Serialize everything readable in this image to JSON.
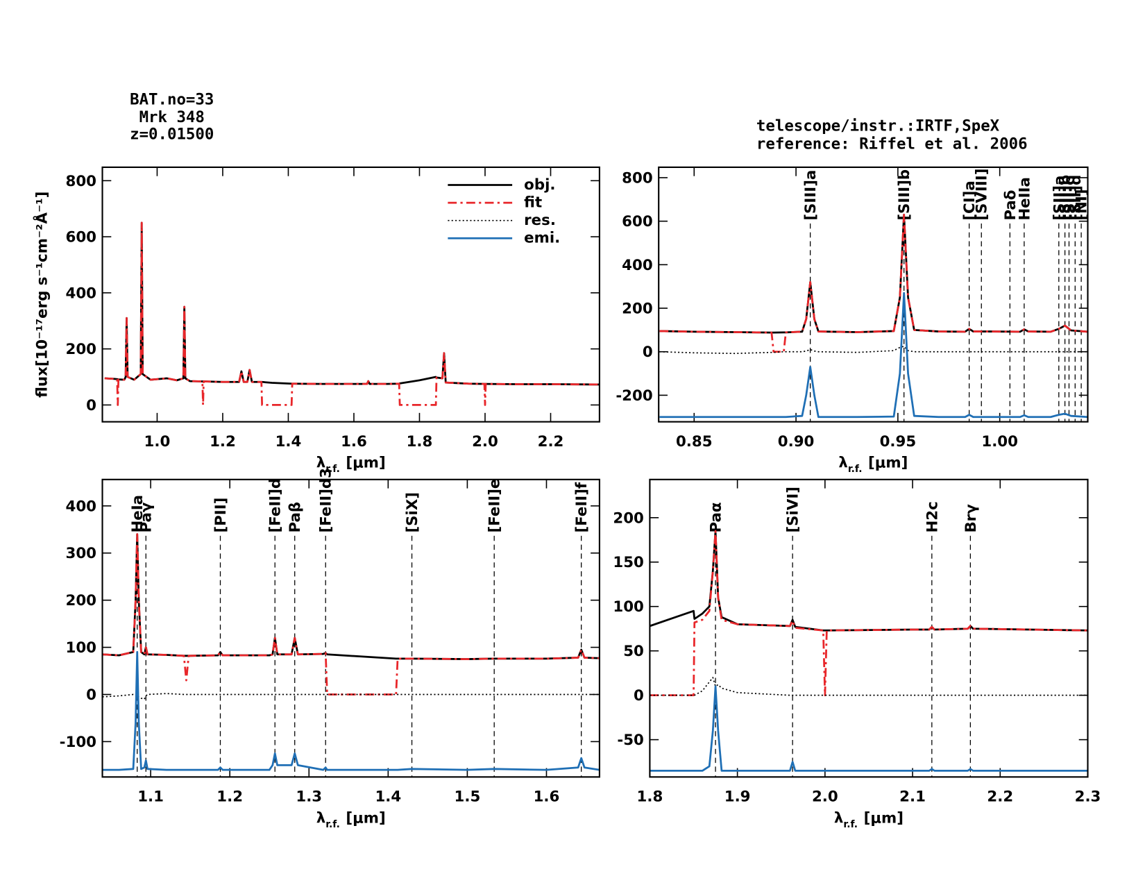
{
  "header": {
    "object": [
      "BAT.no=33",
      "Mrk 348",
      "z=0.01500"
    ],
    "info": [
      "telescope/instr.:IRTF,SpeX",
      "reference: Riffel et al. 2006"
    ]
  },
  "chart_data": [
    {
      "type": "line",
      "ylabel": "flux[10⁻¹⁷erg s⁻¹cm⁻²Å⁻¹]",
      "xlabel": {
        "symbol": "λ",
        "subscript": "r.f.",
        "unit": "[μm]"
      },
      "xlim": [
        0.833,
        2.349
      ],
      "ylim": [
        -60,
        848
      ],
      "xticks": [
        {
          "value": 1,
          "label": "1.0"
        },
        1.2,
        1.4,
        1.6,
        1.8,
        {
          "value": 2,
          "label": "2.0"
        },
        2.2
      ],
      "yticks": [
        0,
        200,
        400,
        600,
        800
      ],
      "legend": [
        {
          "name": "obj.",
          "color": "#000000",
          "dash": "solid"
        },
        {
          "name": "fit",
          "color": "#e8262a",
          "dash": "dashdot"
        },
        {
          "name": "res.",
          "color": "#000000",
          "dash": "dotted"
        },
        {
          "name": "emi.",
          "color": "#1f6fb5",
          "dash": "solid"
        }
      ],
      "x": [
        0.84,
        0.87,
        0.878,
        0.88,
        0.882,
        0.9,
        0.904,
        0.907,
        0.91,
        0.93,
        0.95,
        0.953,
        0.956,
        0.98,
        1.0,
        1.03,
        1.06,
        1.08,
        1.083,
        1.086,
        1.1,
        1.138,
        1.14,
        1.142,
        1.2,
        1.25,
        1.257,
        1.264,
        1.275,
        1.282,
        1.289,
        1.318,
        1.32,
        1.35,
        1.41,
        1.412,
        1.5,
        1.6,
        1.64,
        1.644,
        1.648,
        1.7,
        1.738,
        1.74,
        1.8,
        1.85,
        1.852,
        1.87,
        1.875,
        1.88,
        1.95,
        1.998,
        2.0,
        2.002,
        2.1,
        2.2,
        2.35
      ],
      "series": [
        {
          "color": "#000000",
          "dash": "solid",
          "values": [
            95,
            93,
            92,
            92,
            91,
            90,
            100,
            310,
            100,
            90,
            110,
            650,
            110,
            90,
            92,
            95,
            88,
            95,
            350,
            95,
            85,
            84,
            84,
            84,
            82,
            82,
            120,
            82,
            82,
            125,
            82,
            82,
            82,
            79,
            76,
            76,
            75,
            75,
            75,
            85,
            75,
            75,
            76,
            77,
            88,
            100,
            98,
            95,
            185,
            80,
            76,
            75,
            75,
            75,
            74,
            74,
            73
          ]
        },
        {
          "color": "#e8262a",
          "dash": "dashdot",
          "values": [
            95,
            93,
            92,
            0,
            91,
            90,
            100,
            310,
            100,
            90,
            110,
            650,
            110,
            90,
            92,
            95,
            88,
            95,
            350,
            95,
            85,
            84,
            0,
            84,
            82,
            82,
            120,
            82,
            82,
            125,
            82,
            82,
            0,
            0,
            0,
            76,
            75,
            75,
            75,
            85,
            75,
            75,
            76,
            0,
            0,
            0,
            98,
            95,
            185,
            80,
            76,
            75,
            0,
            75,
            74,
            74,
            73
          ]
        }
      ]
    },
    {
      "type": "line",
      "xlabel": {
        "symbol": "λ",
        "subscript": "r.f.",
        "unit": "[μm]"
      },
      "xlim": [
        0.8326,
        1.0432
      ],
      "ylim": [
        -322,
        848
      ],
      "xticks": [
        0.85,
        {
          "value": 0.9,
          "label": "0.90"
        },
        0.95,
        {
          "value": 1,
          "label": "1.00"
        }
      ],
      "yticks": [
        -200,
        0,
        200,
        400,
        600,
        800
      ],
      "lines": [
        {
          "label": "[SIII]a",
          "x": 0.907
        },
        {
          "label": "[SIII]b",
          "x": 0.953
        },
        {
          "label": "[CI]a",
          "x": 0.985
        },
        {
          "label": "[SVIII]",
          "x": 0.991
        },
        {
          "label": "Paδ",
          "x": 1.005
        },
        {
          "label": "HeIIa",
          "x": 1.012
        },
        {
          "label": "[SII]a",
          "x": 1.029
        },
        {
          "label": "[SII]b",
          "x": 1.032
        },
        {
          "label": "[SII]c",
          "x": 1.034
        },
        {
          "label": "[SII]d",
          "x": 1.037
        },
        {
          "label": "[NI]",
          "x": 1.04
        }
      ],
      "x": [
        0.833,
        0.85,
        0.87,
        0.888,
        0.889,
        0.894,
        0.895,
        0.903,
        0.905,
        0.907,
        0.909,
        0.911,
        0.93,
        0.948,
        0.951,
        0.953,
        0.955,
        0.958,
        0.97,
        0.983,
        0.985,
        0.987,
        0.995,
        1.01,
        1.012,
        1.014,
        1.025,
        1.029,
        1.032,
        1.035,
        1.043
      ],
      "series": [
        {
          "color": "#000000",
          "dash": "solid",
          "values": [
            95,
            92,
            90,
            88,
            88,
            89,
            89,
            92,
            150,
            320,
            150,
            93,
            90,
            95,
            250,
            630,
            250,
            100,
            93,
            92,
            105,
            93,
            93,
            92,
            103,
            93,
            92,
            105,
            120,
            98,
            92
          ]
        },
        {
          "color": "#e8262a",
          "dash": "dashdot",
          "values": [
            95,
            92,
            90,
            88,
            0,
            0,
            89,
            92,
            150,
            320,
            150,
            93,
            90,
            95,
            250,
            630,
            250,
            100,
            93,
            92,
            105,
            93,
            93,
            92,
            103,
            93,
            92,
            105,
            120,
            98,
            92
          ]
        },
        {
          "color": "#000000",
          "dash": "dotted",
          "values": [
            0,
            -5,
            -8,
            -3,
            -3,
            0,
            0,
            0,
            3,
            10,
            3,
            0,
            -3,
            5,
            20,
            25,
            5,
            0,
            0,
            0,
            0,
            0,
            0,
            0,
            0,
            0,
            0,
            0,
            0,
            0,
            0
          ]
        },
        {
          "color": "#1f6fb5",
          "dash": "solid",
          "values": [
            -300,
            -300,
            -300,
            -300,
            -300,
            -300,
            -300,
            -295,
            -200,
            -70,
            -200,
            -300,
            -300,
            -298,
            -100,
            270,
            -100,
            -295,
            -300,
            -300,
            -290,
            -300,
            -300,
            -300,
            -292,
            -300,
            -300,
            -290,
            -285,
            -295,
            -300
          ]
        }
      ]
    },
    {
      "type": "line",
      "xlabel": {
        "symbol": "λ",
        "subscript": "r.f.",
        "unit": "[μm]"
      },
      "xlim": [
        1.039,
        1.667
      ],
      "ylim": [
        -175,
        456
      ],
      "xticks": [
        1.1,
        1.2,
        1.3,
        1.4,
        1.5,
        1.6
      ],
      "yticks": [
        -100,
        0,
        100,
        200,
        300,
        400
      ],
      "lines": [
        {
          "label": "HeIa",
          "x": 1.083
        },
        {
          "label": "Paγ",
          "x": 1.094
        },
        {
          "label": "[PII]",
          "x": 1.188
        },
        {
          "label": "[FeII]d",
          "x": 1.257
        },
        {
          "label": "Paβ",
          "x": 1.282
        },
        {
          "label": "[FeII]d3",
          "x": 1.321
        },
        {
          "label": "[SiX]",
          "x": 1.43
        },
        {
          "label": "[FeII]e",
          "x": 1.534
        },
        {
          "label": "[FeII]f",
          "x": 1.644
        }
      ],
      "x": [
        1.039,
        1.06,
        1.078,
        1.081,
        1.083,
        1.085,
        1.088,
        1.092,
        1.094,
        1.096,
        1.12,
        1.142,
        1.145,
        1.148,
        1.185,
        1.188,
        1.191,
        1.25,
        1.254,
        1.257,
        1.26,
        1.278,
        1.282,
        1.286,
        1.318,
        1.321,
        1.323,
        1.41,
        1.412,
        1.43,
        1.5,
        1.534,
        1.6,
        1.64,
        1.644,
        1.648,
        1.667
      ],
      "series": [
        {
          "color": "#000000",
          "dash": "solid",
          "values": [
            85,
            83,
            90,
            200,
            340,
            200,
            90,
            85,
            100,
            85,
            84,
            82,
            82,
            82,
            83,
            90,
            83,
            83,
            85,
            120,
            85,
            85,
            120,
            85,
            86,
            88,
            85,
            76,
            76,
            76,
            75,
            76,
            76,
            78,
            95,
            78,
            77
          ]
        },
        {
          "color": "#e8262a",
          "dash": "dashdot",
          "values": [
            85,
            83,
            90,
            200,
            340,
            200,
            90,
            85,
            100,
            85,
            84,
            82,
            30,
            82,
            83,
            90,
            83,
            83,
            85,
            120,
            85,
            85,
            120,
            85,
            86,
            88,
            0,
            0,
            76,
            76,
            75,
            76,
            76,
            78,
            95,
            78,
            77
          ]
        },
        {
          "color": "#000000",
          "dash": "dotted",
          "values": [
            -5,
            -3,
            0,
            -2,
            0,
            -5,
            -8,
            -10,
            -3,
            0,
            2,
            0,
            0,
            0,
            0,
            0,
            0,
            0,
            0,
            0,
            0,
            0,
            0,
            0,
            0,
            0,
            0,
            0,
            0,
            0,
            0,
            0,
            0,
            0,
            0,
            0,
            0
          ]
        },
        {
          "color": "#1f6fb5",
          "dash": "solid",
          "values": [
            -160,
            -160,
            -158,
            -60,
            90,
            -60,
            -158,
            -155,
            -140,
            -158,
            -160,
            -160,
            -160,
            -160,
            -160,
            -155,
            -160,
            -160,
            -150,
            -125,
            -150,
            -150,
            -125,
            -150,
            -160,
            -155,
            -160,
            -160,
            -160,
            -158,
            -160,
            -158,
            -160,
            -155,
            -135,
            -155,
            -160
          ]
        }
      ]
    },
    {
      "type": "line",
      "xlabel": {
        "symbol": "λ",
        "subscript": "r.f.",
        "unit": "[μm]"
      },
      "xlim": [
        1.8,
        2.3
      ],
      "ylim": [
        -92,
        243
      ],
      "xticks": [
        1.8,
        1.9,
        {
          "value": 2,
          "label": "2.0"
        },
        2.1,
        2.2,
        2.3
      ],
      "yticks": [
        -50,
        0,
        50,
        100,
        150,
        200
      ],
      "lines": [
        {
          "label": "Paα",
          "x": 1.875
        },
        {
          "label": "[SiVI]",
          "x": 1.963
        },
        {
          "label": "H2c",
          "x": 2.122
        },
        {
          "label": "Brγ",
          "x": 2.166
        }
      ],
      "x": [
        1.8,
        1.85,
        1.851,
        1.86,
        1.868,
        1.872,
        1.875,
        1.878,
        1.882,
        1.9,
        1.96,
        1.963,
        1.966,
        1.998,
        2.0,
        2.002,
        2.1,
        2.119,
        2.122,
        2.125,
        2.163,
        2.166,
        2.169,
        2.3
      ],
      "series": [
        {
          "color": "#000000",
          "dash": "solid",
          "values": [
            78,
            95,
            86,
            92,
            100,
            140,
            185,
            110,
            88,
            80,
            78,
            85,
            77,
            73,
            73,
            73,
            74,
            74,
            77,
            74,
            75,
            78,
            75,
            73
          ]
        },
        {
          "color": "#e8262a",
          "dash": "dashdot",
          "values": [
            0,
            0,
            82,
            85,
            95,
            140,
            185,
            110,
            85,
            80,
            78,
            84,
            76,
            73,
            0,
            73,
            74,
            74,
            77,
            74,
            75,
            78,
            75,
            73
          ]
        },
        {
          "color": "#000000",
          "dash": "dotted",
          "values": [
            0,
            0,
            0,
            5,
            15,
            20,
            10,
            12,
            8,
            3,
            0,
            0,
            0,
            0,
            0,
            0,
            0,
            0,
            0,
            0,
            0,
            0,
            0,
            0
          ]
        },
        {
          "color": "#1f6fb5",
          "dash": "solid",
          "values": [
            -85,
            -85,
            -85,
            -85,
            -80,
            -40,
            10,
            -40,
            -85,
            -85,
            -85,
            -75,
            -85,
            -85,
            -85,
            -85,
            -85,
            -85,
            -83,
            -85,
            -85,
            -83,
            -85,
            -85
          ]
        }
      ]
    }
  ]
}
